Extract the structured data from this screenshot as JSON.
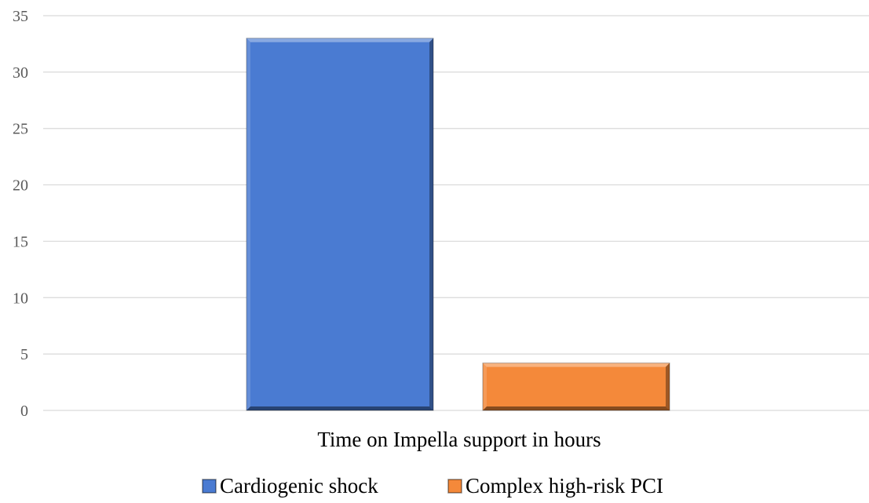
{
  "chart_data": {
    "type": "bar",
    "categories": [
      "Time on Impella support in hours"
    ],
    "series": [
      {
        "name": "Cardiogenic shock",
        "values": [
          33
        ],
        "color": "#4a7bd2"
      },
      {
        "name": "Complex high-risk PCI",
        "values": [
          4.2
        ],
        "color": "#f4893a"
      }
    ],
    "ylim": [
      0,
      35
    ],
    "yticks": [
      0,
      5,
      10,
      15,
      20,
      25,
      30,
      35
    ],
    "grid": true,
    "legend_position": "bottom"
  }
}
